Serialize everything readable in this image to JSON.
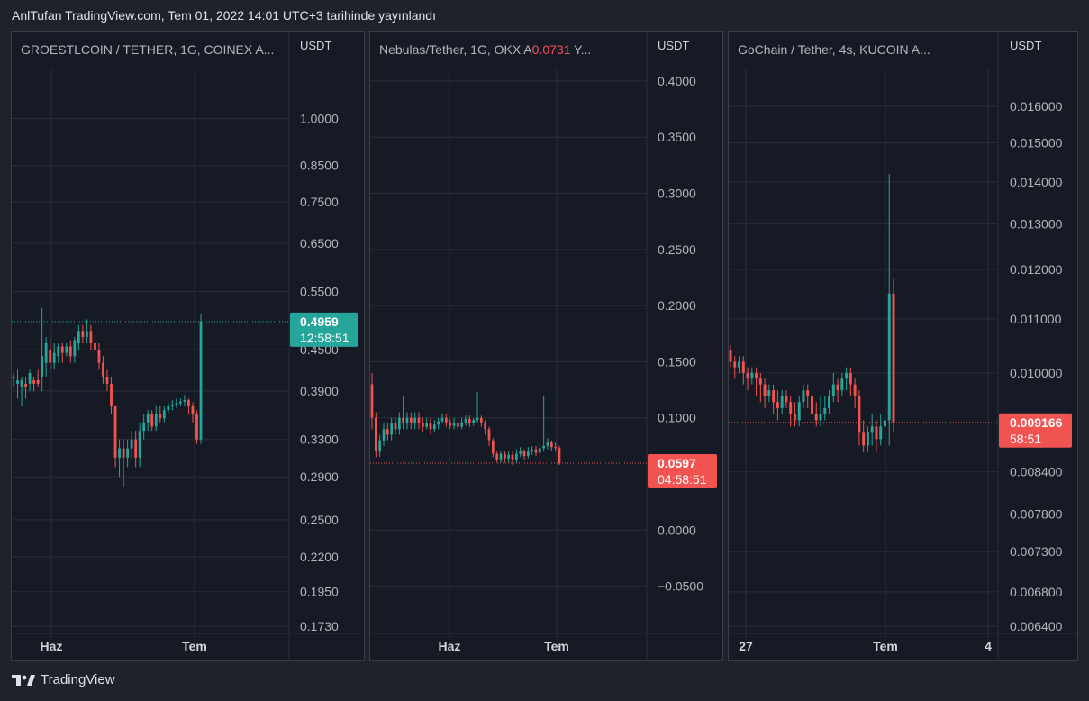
{
  "header": {
    "text": "AnlTufan TradingView.com, Tem 01, 2022 14:01 UTC+3 tarihinde yayınlandı"
  },
  "footer": {
    "brand": "TradingView",
    "logo_icon": "tradingview-logo-icon"
  },
  "colors": {
    "up": "#26a69a",
    "down": "#f05350",
    "grid": "#2a2e39",
    "axis_text": "#b2b5be"
  },
  "chart_data": [
    {
      "type": "candlestick",
      "title": "GROESTLCOIN / TETHER, 1G, COINEX  A...",
      "ylabel": "USDT",
      "yscale": "log",
      "ylim": [
        0.1715,
        1.23
      ],
      "y_ticks": [
        "1.0000",
        "0.8500",
        "0.7500",
        "0.6500",
        "0.5500",
        "0.4500",
        "0.3900",
        "0.3300",
        "0.2900",
        "0.2500",
        "0.2200",
        "0.1950",
        "0.1730"
      ],
      "x_ticks": [
        "Haz",
        "Tem"
      ],
      "last_price": "0.4959",
      "last_price_value": 0.4959,
      "countdown": "12:58:51",
      "badge_color": "#26a69a",
      "candles": [
        [
          0.41,
          0.41,
          0.415,
          0.395
        ],
        [
          0.4,
          0.405,
          0.42,
          0.38
        ],
        [
          0.395,
          0.405,
          0.41,
          0.37
        ],
        [
          0.4,
          0.395,
          0.41,
          0.38
        ],
        [
          0.4,
          0.415,
          0.42,
          0.39
        ],
        [
          0.405,
          0.4,
          0.41,
          0.39
        ],
        [
          0.405,
          0.4,
          0.42,
          0.395
        ],
        [
          0.41,
          0.44,
          0.52,
          0.39
        ],
        [
          0.43,
          0.46,
          0.47,
          0.41
        ],
        [
          0.45,
          0.43,
          0.47,
          0.42
        ],
        [
          0.43,
          0.445,
          0.46,
          0.42
        ],
        [
          0.44,
          0.455,
          0.46,
          0.43
        ],
        [
          0.455,
          0.445,
          0.46,
          0.43
        ],
        [
          0.445,
          0.455,
          0.46,
          0.44
        ],
        [
          0.455,
          0.44,
          0.465,
          0.43
        ],
        [
          0.44,
          0.465,
          0.47,
          0.43
        ],
        [
          0.46,
          0.48,
          0.49,
          0.45
        ],
        [
          0.48,
          0.47,
          0.49,
          0.46
        ],
        [
          0.47,
          0.48,
          0.5,
          0.46
        ],
        [
          0.48,
          0.46,
          0.49,
          0.45
        ],
        [
          0.46,
          0.45,
          0.47,
          0.44
        ],
        [
          0.45,
          0.43,
          0.46,
          0.42
        ],
        [
          0.43,
          0.41,
          0.44,
          0.4
        ],
        [
          0.41,
          0.4,
          0.42,
          0.39
        ],
        [
          0.4,
          0.37,
          0.41,
          0.36
        ],
        [
          0.37,
          0.31,
          0.37,
          0.3
        ],
        [
          0.31,
          0.32,
          0.33,
          0.29
        ],
        [
          0.32,
          0.31,
          0.33,
          0.28
        ],
        [
          0.31,
          0.32,
          0.33,
          0.3
        ],
        [
          0.32,
          0.33,
          0.34,
          0.31
        ],
        [
          0.33,
          0.31,
          0.34,
          0.3
        ],
        [
          0.31,
          0.34,
          0.35,
          0.3
        ],
        [
          0.34,
          0.35,
          0.36,
          0.33
        ],
        [
          0.35,
          0.36,
          0.365,
          0.34
        ],
        [
          0.36,
          0.345,
          0.365,
          0.34
        ],
        [
          0.345,
          0.36,
          0.37,
          0.34
        ],
        [
          0.36,
          0.355,
          0.37,
          0.35
        ],
        [
          0.355,
          0.365,
          0.37,
          0.35
        ],
        [
          0.365,
          0.37,
          0.375,
          0.36
        ],
        [
          0.37,
          0.372,
          0.378,
          0.365
        ],
        [
          0.372,
          0.374,
          0.38,
          0.368
        ],
        [
          0.374,
          0.376,
          0.38,
          0.37
        ],
        [
          0.376,
          0.378,
          0.385,
          0.37
        ],
        [
          0.378,
          0.37,
          0.38,
          0.36
        ],
        [
          0.37,
          0.36,
          0.375,
          0.35
        ],
        [
          0.36,
          0.33,
          0.365,
          0.325
        ],
        [
          0.33,
          0.4959,
          0.51,
          0.325
        ]
      ]
    },
    {
      "type": "candlestick",
      "title": "Nebulas/Tether, 1G, OKX  A",
      "title_value": "0.0731",
      "title_suffix": "  Y...",
      "ylabel": "USDT",
      "yscale": "linear",
      "ylim": [
        -0.088,
        0.42
      ],
      "y_ticks": [
        "0.4000",
        "0.3500",
        "0.3000",
        "0.2500",
        "0.2000",
        "0.1500",
        "0.1000",
        "0.0000",
        "−0.0500"
      ],
      "x_ticks": [
        "Haz",
        "Tem"
      ],
      "last_price": "0.0597",
      "last_price_value": 0.0597,
      "countdown": "04:58:51",
      "badge_color": "#f05350",
      "candles": [
        [
          0.13,
          0.1,
          0.14,
          0.09
        ],
        [
          0.1,
          0.07,
          0.105,
          0.065
        ],
        [
          0.07,
          0.08,
          0.085,
          0.065
        ],
        [
          0.08,
          0.09,
          0.095,
          0.075
        ],
        [
          0.09,
          0.085,
          0.095,
          0.08
        ],
        [
          0.085,
          0.095,
          0.1,
          0.08
        ],
        [
          0.095,
          0.09,
          0.1,
          0.085
        ],
        [
          0.09,
          0.1,
          0.105,
          0.085
        ],
        [
          0.1,
          0.095,
          0.12,
          0.09
        ],
        [
          0.095,
          0.1,
          0.105,
          0.09
        ],
        [
          0.1,
          0.095,
          0.105,
          0.09
        ],
        [
          0.095,
          0.1,
          0.105,
          0.09
        ],
        [
          0.1,
          0.095,
          0.105,
          0.09
        ],
        [
          0.095,
          0.092,
          0.1,
          0.088
        ],
        [
          0.092,
          0.095,
          0.1,
          0.09
        ],
        [
          0.095,
          0.09,
          0.1,
          0.085
        ],
        [
          0.09,
          0.094,
          0.098,
          0.087
        ],
        [
          0.094,
          0.097,
          0.1,
          0.09
        ],
        [
          0.097,
          0.1,
          0.104,
          0.095
        ],
        [
          0.1,
          0.096,
          0.104,
          0.092
        ],
        [
          0.096,
          0.093,
          0.099,
          0.09
        ],
        [
          0.093,
          0.095,
          0.1,
          0.09
        ],
        [
          0.095,
          0.092,
          0.098,
          0.089
        ],
        [
          0.092,
          0.096,
          0.1,
          0.09
        ],
        [
          0.096,
          0.099,
          0.102,
          0.093
        ],
        [
          0.099,
          0.095,
          0.102,
          0.092
        ],
        [
          0.095,
          0.098,
          0.1,
          0.093
        ],
        [
          0.098,
          0.1,
          0.123,
          0.095
        ],
        [
          0.1,
          0.096,
          0.102,
          0.092
        ],
        [
          0.096,
          0.09,
          0.098,
          0.085
        ],
        [
          0.09,
          0.08,
          0.092,
          0.075
        ],
        [
          0.08,
          0.068,
          0.082,
          0.065
        ],
        [
          0.068,
          0.063,
          0.07,
          0.06
        ],
        [
          0.063,
          0.068,
          0.07,
          0.06
        ],
        [
          0.068,
          0.064,
          0.07,
          0.06
        ],
        [
          0.064,
          0.067,
          0.07,
          0.06
        ],
        [
          0.067,
          0.063,
          0.07,
          0.058
        ],
        [
          0.063,
          0.068,
          0.072,
          0.06
        ],
        [
          0.068,
          0.07,
          0.074,
          0.065
        ],
        [
          0.07,
          0.066,
          0.072,
          0.063
        ],
        [
          0.066,
          0.07,
          0.074,
          0.064
        ],
        [
          0.07,
          0.072,
          0.075,
          0.067
        ],
        [
          0.072,
          0.069,
          0.075,
          0.066
        ],
        [
          0.069,
          0.073,
          0.077,
          0.066
        ],
        [
          0.073,
          0.075,
          0.12,
          0.07
        ],
        [
          0.075,
          0.078,
          0.082,
          0.072
        ],
        [
          0.078,
          0.074,
          0.08,
          0.071
        ],
        [
          0.074,
          0.0731,
          0.078,
          0.07
        ],
        [
          0.0731,
          0.0597,
          0.075,
          0.058
        ]
      ]
    },
    {
      "type": "candlestick",
      "title": "GoChain / Tether, 4s, KUCOIN  A...",
      "ylabel": "USDT",
      "yscale": "log",
      "ylim": [
        0.00637,
        0.0174
      ],
      "y_ticks": [
        "0.016000",
        "0.015000",
        "0.014000",
        "0.013000",
        "0.012000",
        "0.011000",
        "0.010000",
        "0.008400",
        "0.007800",
        "0.007300",
        "0.006800",
        "0.006400"
      ],
      "hidden_tick": "0.009166",
      "x_ticks": [
        "27",
        "Tem",
        "4"
      ],
      "last_price": "0.009166",
      "last_price_value": 0.009166,
      "countdown": "58:51",
      "badge_color": "#f05350",
      "candles": [
        [
          0.0104,
          0.0102,
          0.0105,
          0.0101
        ],
        [
          0.0102,
          0.0101,
          0.0103,
          0.0099
        ],
        [
          0.0101,
          0.0102,
          0.0103,
          0.01
        ],
        [
          0.0102,
          0.01,
          0.0103,
          0.0098
        ],
        [
          0.01,
          0.0099,
          0.0101,
          0.0097
        ],
        [
          0.0099,
          0.01,
          0.0101,
          0.0098
        ],
        [
          0.01,
          0.0099,
          0.0101,
          0.0096
        ],
        [
          0.0099,
          0.0098,
          0.01,
          0.0095
        ],
        [
          0.0098,
          0.0096,
          0.0099,
          0.0094
        ],
        [
          0.0096,
          0.0097,
          0.0098,
          0.0095
        ],
        [
          0.0097,
          0.0095,
          0.0098,
          0.0093
        ],
        [
          0.0095,
          0.0094,
          0.0097,
          0.0092
        ],
        [
          0.0094,
          0.0096,
          0.0097,
          0.0093
        ],
        [
          0.0096,
          0.0095,
          0.0097,
          0.0094
        ],
        [
          0.0095,
          0.0093,
          0.0096,
          0.0091
        ],
        [
          0.0093,
          0.0092,
          0.0095,
          0.0091
        ],
        [
          0.0092,
          0.0095,
          0.0096,
          0.0091
        ],
        [
          0.0095,
          0.0097,
          0.0098,
          0.0094
        ],
        [
          0.0097,
          0.0096,
          0.0098,
          0.0094
        ],
        [
          0.0096,
          0.0093,
          0.0098,
          0.0092
        ],
        [
          0.0093,
          0.0092,
          0.0095,
          0.0091
        ],
        [
          0.0092,
          0.0093,
          0.0096,
          0.0091
        ],
        [
          0.0093,
          0.0094,
          0.0096,
          0.0092
        ],
        [
          0.0094,
          0.0096,
          0.0097,
          0.0093
        ],
        [
          0.0096,
          0.0098,
          0.01,
          0.0095
        ],
        [
          0.0098,
          0.0097,
          0.0099,
          0.0095
        ],
        [
          0.0097,
          0.0099,
          0.01,
          0.0096
        ],
        [
          0.0099,
          0.01,
          0.0101,
          0.0097
        ],
        [
          0.01,
          0.0098,
          0.0101,
          0.0096
        ],
        [
          0.0098,
          0.0096,
          0.0099,
          0.0094
        ],
        [
          0.0096,
          0.009,
          0.0097,
          0.0088
        ],
        [
          0.009,
          0.0088,
          0.0092,
          0.0087
        ],
        [
          0.0088,
          0.009,
          0.0091,
          0.0087
        ],
        [
          0.009,
          0.0091,
          0.0093,
          0.0088
        ],
        [
          0.0091,
          0.0089,
          0.0092,
          0.0087
        ],
        [
          0.0089,
          0.0091,
          0.0093,
          0.0088
        ],
        [
          0.0091,
          0.0092,
          0.0093,
          0.009
        ],
        [
          0.0092,
          0.0115,
          0.0142,
          0.0088
        ],
        [
          0.0115,
          0.009166,
          0.0118,
          0.009
        ]
      ]
    }
  ]
}
